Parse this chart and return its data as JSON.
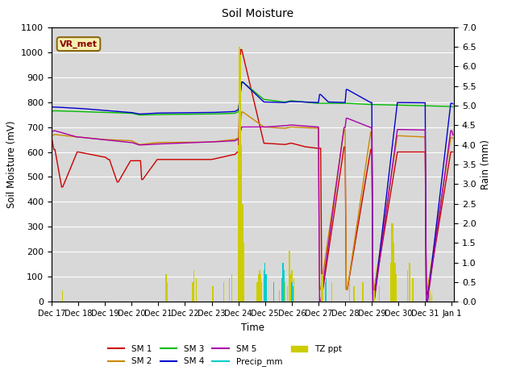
{
  "title": "Soil Moisture",
  "xlabel": "Time",
  "ylabel_left": "Soil Moisture (mV)",
  "ylabel_right": "Rain (mm)",
  "ylim_left": [
    0,
    1100
  ],
  "ylim_right": [
    0.0,
    7.0
  ],
  "yticks_left": [
    0,
    100,
    200,
    300,
    400,
    500,
    600,
    700,
    800,
    900,
    1000,
    1100
  ],
  "yticks_right": [
    0.0,
    0.5,
    1.0,
    1.5,
    2.0,
    2.5,
    3.0,
    3.5,
    4.0,
    4.5,
    5.0,
    5.5,
    6.0,
    6.5,
    7.0
  ],
  "bg_color": "#d8d8d8",
  "grid_color": "#ffffff",
  "line_colors": {
    "SM1": "#cc0000",
    "SM2": "#cc8800",
    "SM3": "#00bb00",
    "SM4": "#0000cc",
    "SM5": "#aa00aa",
    "Precip_mm": "#00cccc",
    "TZ_ppt": "#cccc00"
  }
}
